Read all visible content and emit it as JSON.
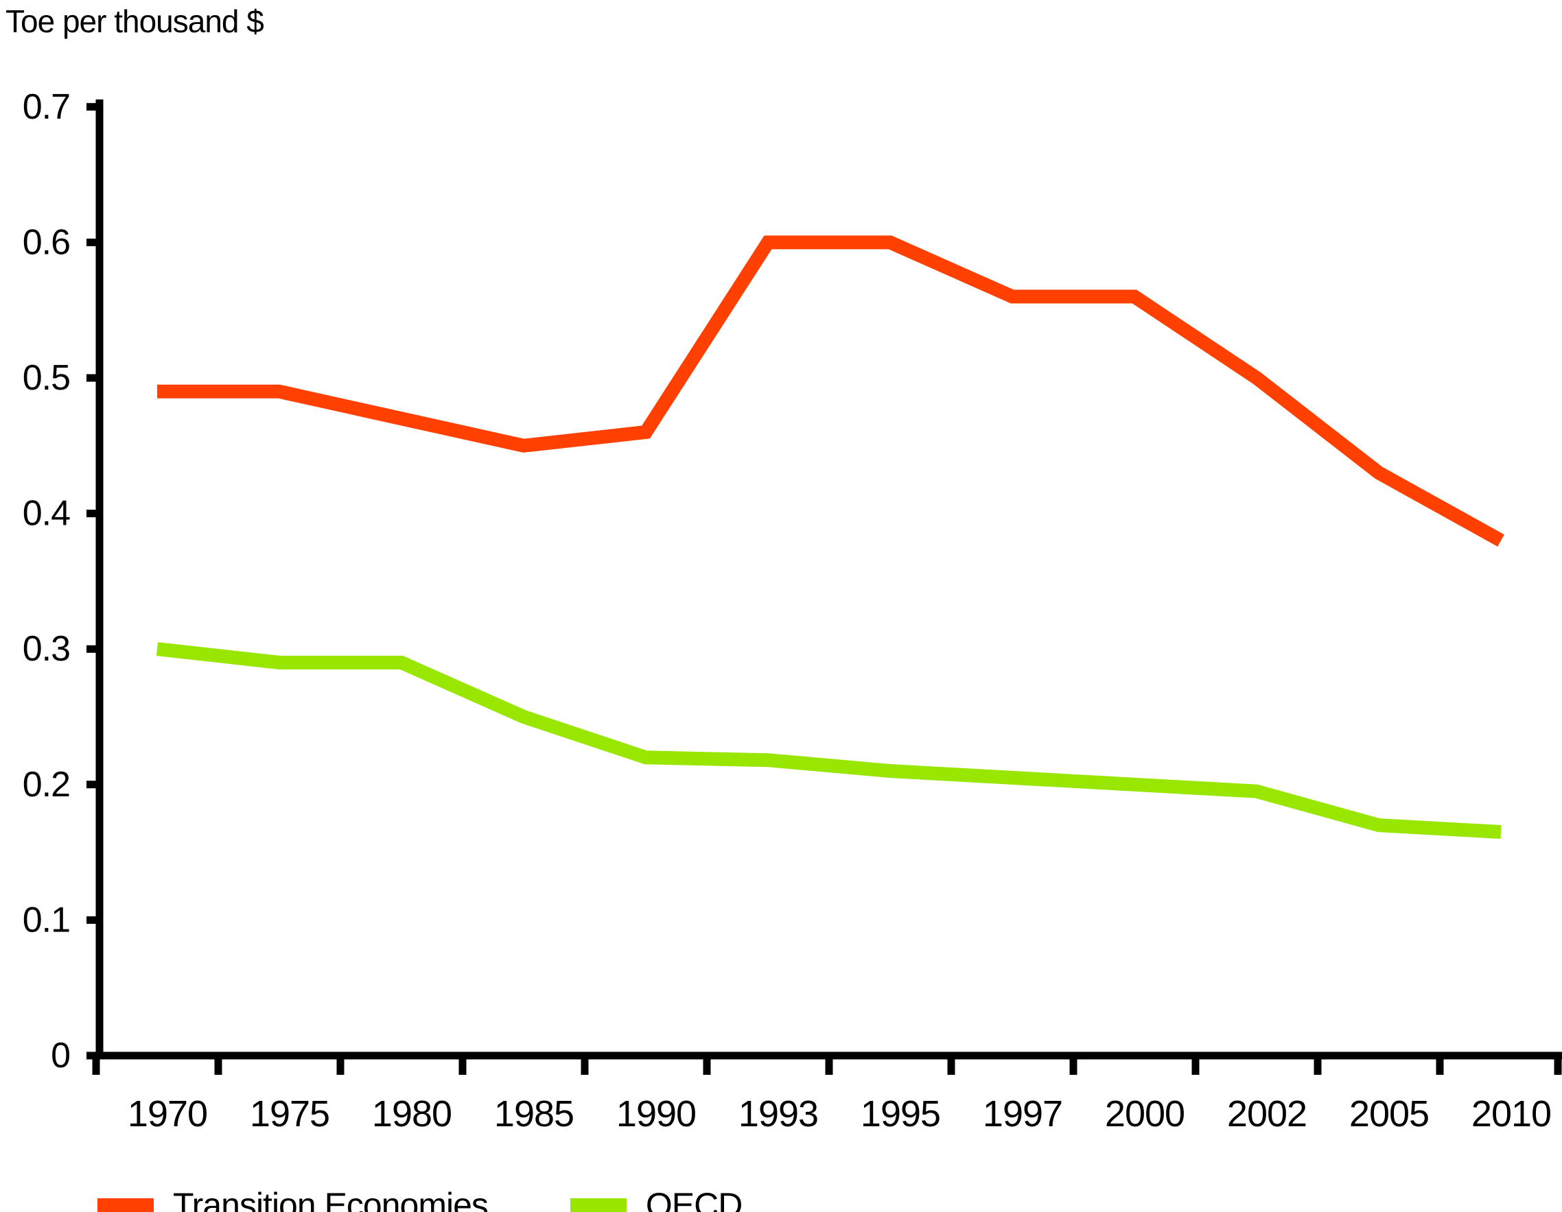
{
  "title": "Toe per thousand $",
  "chart_data": {
    "type": "line",
    "title": "Toe per thousand $",
    "categories": [
      "1970",
      "1975",
      "1980",
      "1985",
      "1990",
      "1993",
      "1995",
      "1997",
      "2000",
      "2002",
      "2005",
      "2010"
    ],
    "series": [
      {
        "name": "Transition Economies",
        "color": "#FF4000",
        "values": [
          0.49,
          0.49,
          0.47,
          0.45,
          0.46,
          0.6,
          0.6,
          0.56,
          0.56,
          0.5,
          0.43,
          0.38
        ]
      },
      {
        "name": "OECD",
        "color": "#99E600",
        "values": [
          0.3,
          0.29,
          0.29,
          0.25,
          0.22,
          0.218,
          0.21,
          0.205,
          0.2,
          0.195,
          0.17,
          0.165
        ]
      }
    ],
    "xlabel": "",
    "ylabel": "Toe per thousand $",
    "ylim": [
      0,
      0.7
    ],
    "y_ticks": [
      0,
      0.1,
      0.2,
      0.3,
      0.4,
      0.5,
      0.6,
      0.7
    ],
    "grid": false,
    "legend_position": "bottom-left",
    "axis_color": "#000000",
    "background": "#FFFFFF"
  }
}
